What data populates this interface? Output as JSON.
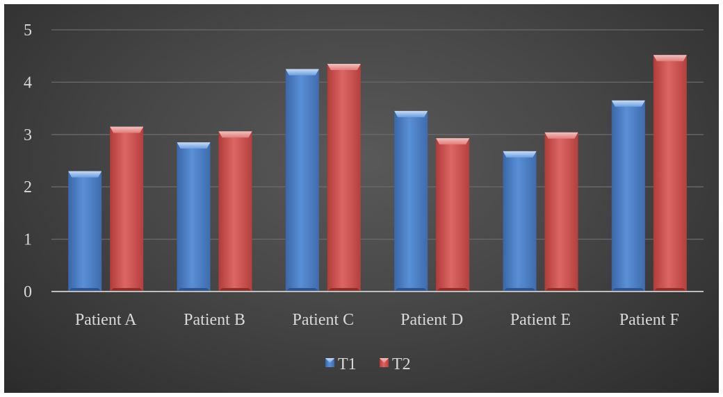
{
  "chart_data": {
    "type": "bar",
    "categories": [
      "Patient A",
      "Patient B",
      "Patient C",
      "Patient D",
      "Patient E",
      "Patient F"
    ],
    "series": [
      {
        "name": "T1",
        "values": [
          2.3,
          2.85,
          4.25,
          3.45,
          2.68,
          3.65
        ],
        "color": "#4f81bd"
      },
      {
        "name": "T2",
        "values": [
          3.15,
          3.06,
          4.35,
          2.93,
          3.04,
          4.52
        ],
        "color": "#c0504d"
      }
    ],
    "ylim": [
      0,
      5
    ],
    "yticks": [
      "0",
      "1",
      "2",
      "3",
      "4",
      "5"
    ],
    "grid": true,
    "legend_position": "bottom"
  }
}
